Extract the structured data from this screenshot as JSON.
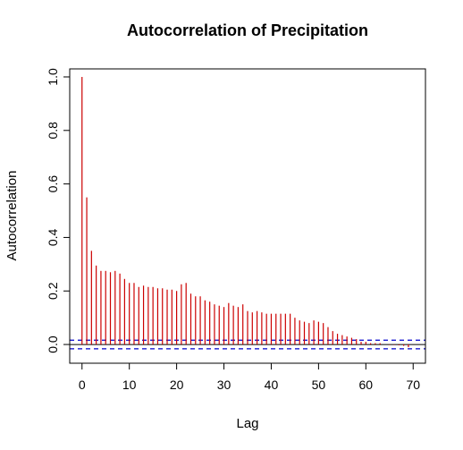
{
  "chart_data": {
    "type": "bar",
    "title": "Autocorrelation of Precipitation",
    "xlabel": "Lag",
    "ylabel": "Autocorrelation",
    "xlim": [
      -2.6,
      72.6
    ],
    "ylim": [
      -0.07,
      1.03
    ],
    "x_ticks": [
      0,
      10,
      20,
      30,
      40,
      50,
      60,
      70
    ],
    "y_ticks": [
      0.0,
      0.2,
      0.4,
      0.6,
      0.8,
      1.0
    ],
    "y_tick_labels": [
      "0.0",
      "0.2",
      "0.4",
      "0.6",
      "0.8",
      "1.0"
    ],
    "x_tick_labels": [
      "0",
      "10",
      "20",
      "30",
      "40",
      "50",
      "60",
      "70"
    ],
    "bar_color": "#cc0000",
    "conf_color": "#0000cc",
    "zero_line": 0.0,
    "confidence_bounds": [
      0.016,
      -0.016
    ],
    "lags": [
      0,
      1,
      2,
      3,
      4,
      5,
      6,
      7,
      8,
      9,
      10,
      11,
      12,
      13,
      14,
      15,
      16,
      17,
      18,
      19,
      20,
      21,
      22,
      23,
      24,
      25,
      26,
      27,
      28,
      29,
      30,
      31,
      32,
      33,
      34,
      35,
      36,
      37,
      38,
      39,
      40,
      41,
      42,
      43,
      44,
      45,
      46,
      47,
      48,
      49,
      50,
      51,
      52,
      53,
      54,
      55,
      56,
      57,
      58,
      59,
      60,
      61,
      62,
      63,
      64,
      65,
      66,
      67,
      68,
      69,
      70
    ],
    "values": [
      1.0,
      0.55,
      0.35,
      0.295,
      0.275,
      0.275,
      0.27,
      0.275,
      0.265,
      0.245,
      0.23,
      0.23,
      0.215,
      0.22,
      0.215,
      0.215,
      0.21,
      0.21,
      0.205,
      0.205,
      0.2,
      0.225,
      0.23,
      0.19,
      0.18,
      0.18,
      0.165,
      0.16,
      0.15,
      0.145,
      0.14,
      0.155,
      0.145,
      0.14,
      0.15,
      0.125,
      0.12,
      0.125,
      0.12,
      0.115,
      0.115,
      0.115,
      0.115,
      0.115,
      0.115,
      0.1,
      0.09,
      0.085,
      0.08,
      0.09,
      0.085,
      0.08,
      0.065,
      0.05,
      0.04,
      0.035,
      0.03,
      0.025,
      0.02,
      0.01,
      0.01,
      0.005,
      0.005,
      0.005,
      0.0,
      -0.002,
      -0.002,
      -0.003,
      -0.005,
      -0.01,
      0.0
    ]
  }
}
